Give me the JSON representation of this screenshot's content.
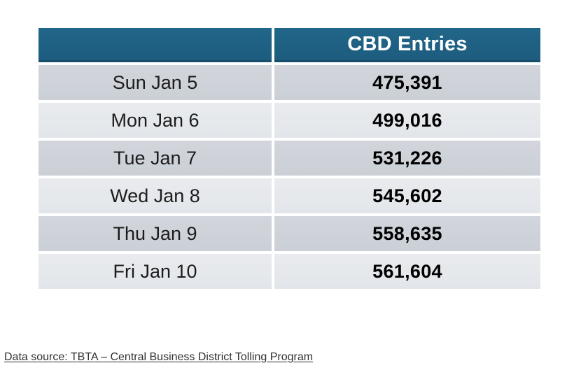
{
  "table": {
    "header": {
      "date_col": "",
      "entries_col": "CBD Entries"
    },
    "rows": [
      {
        "date": "Sun Jan 5",
        "entries": "475,391"
      },
      {
        "date": "Mon Jan 6",
        "entries": "499,016"
      },
      {
        "date": "Tue Jan 7",
        "entries": "531,226"
      },
      {
        "date": "Wed Jan 8",
        "entries": "545,602"
      },
      {
        "date": "Thu Jan 9",
        "entries": "558,635"
      },
      {
        "date": "Fri Jan 10",
        "entries": "561,604"
      }
    ]
  },
  "footer": {
    "source_text": "Data source: TBTA – Central Business District Tolling Program"
  },
  "colors": {
    "header_bg": "#1e5f82",
    "header_text": "#ffffff",
    "row_dark": "#cdd2d8",
    "row_light": "#e6e9ed",
    "text": "#1c1c1c"
  },
  "chart_data": {
    "type": "table",
    "title": "CBD Entries",
    "categories": [
      "Sun Jan 5",
      "Mon Jan 6",
      "Tue Jan 7",
      "Wed Jan 8",
      "Thu Jan 9",
      "Fri Jan 10"
    ],
    "values": [
      475391,
      499016,
      531226,
      545602,
      558635,
      561604
    ],
    "source": "Data source: TBTA – Central Business District Tolling Program"
  }
}
